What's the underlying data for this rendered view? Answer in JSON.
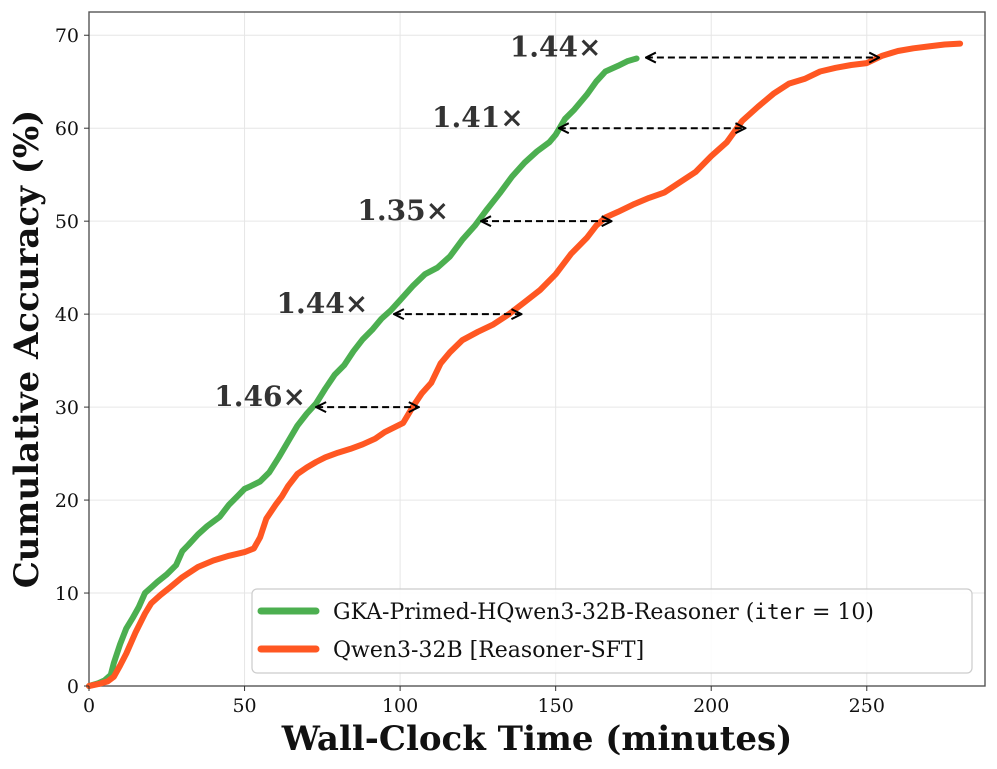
{
  "chart_data": {
    "type": "line",
    "xlabel": "Wall-Clock Time (minutes)",
    "ylabel": "Cumulative Accuracy (%)",
    "xlim": [
      0,
      288
    ],
    "ylim": [
      0,
      72.5
    ],
    "xticks": [
      0,
      50,
      100,
      150,
      200,
      250
    ],
    "yticks": [
      0,
      10,
      20,
      30,
      40,
      50,
      60,
      70
    ],
    "grid": true,
    "legend_position": "lower-right",
    "series": [
      {
        "name": "GKA-Primed-HQwen3-32B-Reasoner (iter = 10)",
        "legend_prefix": "GKA-Primed-HQwen3-32B-Reasoner (",
        "legend_code": "iter",
        "legend_suffix": " = 10)",
        "color": "#4caf50",
        "x": [
          0,
          3,
          5,
          7,
          8,
          10,
          12,
          14,
          16,
          18,
          20,
          22,
          25,
          28,
          30,
          32,
          35,
          38,
          42,
          45,
          48,
          50,
          52,
          55,
          58,
          61,
          64,
          67,
          70,
          73,
          76,
          79,
          82,
          85,
          88,
          91,
          94,
          97,
          100,
          104,
          108,
          112,
          116,
          120,
          124,
          128,
          132,
          136,
          140,
          144,
          148,
          150,
          153,
          156,
          160,
          163,
          166,
          170,
          173,
          176
        ],
        "y": [
          0,
          0.3,
          0.6,
          1.2,
          2.5,
          4.5,
          6.2,
          7.3,
          8.5,
          10.0,
          10.6,
          11.2,
          12.0,
          13.0,
          14.5,
          15.2,
          16.3,
          17.2,
          18.2,
          19.5,
          20.5,
          21.2,
          21.5,
          22.0,
          23.0,
          24.6,
          26.3,
          28.0,
          29.3,
          30.4,
          32.0,
          33.5,
          34.5,
          36.0,
          37.3,
          38.3,
          39.5,
          40.4,
          41.5,
          43.0,
          44.3,
          45.0,
          46.2,
          48.0,
          49.5,
          51.3,
          53.0,
          54.8,
          56.3,
          57.5,
          58.5,
          59.3,
          61.0,
          62.0,
          63.6,
          65.0,
          66.1,
          66.7,
          67.2,
          67.5
        ]
      },
      {
        "name": "Qwen3-32B [Reasoner-SFT]",
        "color": "#ff5722",
        "x": [
          0,
          3,
          6,
          8,
          10,
          12,
          15,
          18,
          20,
          23,
          26,
          30,
          35,
          40,
          45,
          50,
          53,
          55,
          57,
          60,
          62,
          64,
          67,
          70,
          73,
          76,
          80,
          84,
          88,
          92,
          95,
          98,
          101,
          104,
          107,
          110,
          113,
          116,
          120,
          125,
          130,
          135,
          140,
          145,
          150,
          155,
          160,
          163,
          166,
          170,
          175,
          180,
          185,
          190,
          195,
          200,
          205,
          210,
          215,
          220,
          225,
          230,
          235,
          240,
          245,
          250,
          255,
          260,
          265,
          270,
          275,
          280
        ],
        "y": [
          0,
          0.2,
          0.5,
          1.0,
          2.2,
          3.5,
          5.8,
          7.8,
          8.9,
          9.8,
          10.6,
          11.7,
          12.8,
          13.5,
          14.0,
          14.4,
          14.8,
          16.0,
          18.0,
          19.5,
          20.4,
          21.5,
          22.8,
          23.5,
          24.1,
          24.6,
          25.1,
          25.5,
          26.0,
          26.6,
          27.3,
          27.8,
          28.3,
          30.0,
          31.5,
          32.6,
          34.7,
          35.9,
          37.2,
          38.1,
          38.9,
          40.0,
          41.3,
          42.6,
          44.3,
          46.5,
          48.2,
          49.5,
          50.4,
          51.0,
          51.8,
          52.5,
          53.1,
          54.2,
          55.3,
          57.0,
          58.5,
          60.8,
          62.3,
          63.7,
          64.8,
          65.3,
          66.1,
          66.5,
          66.8,
          67.0,
          67.8,
          68.3,
          68.6,
          68.8,
          69.0,
          69.1
        ]
      }
    ],
    "annotations": [
      {
        "label": "1.46×",
        "y": 30,
        "x_from": 73,
        "x_to": 106,
        "text_x": 55
      },
      {
        "label": "1.44×",
        "y": 40,
        "x_from": 98,
        "x_to": 139,
        "text_x": 75
      },
      {
        "label": "1.35×",
        "y": 50,
        "x_from": 126,
        "x_to": 168,
        "text_x": 101
      },
      {
        "label": "1.41×",
        "y": 60,
        "x_from": 151,
        "x_to": 211,
        "text_x": 125
      },
      {
        "label": "1.44×",
        "y": 67.6,
        "x_from": 179,
        "x_to": 254,
        "text_x": 150
      }
    ]
  }
}
